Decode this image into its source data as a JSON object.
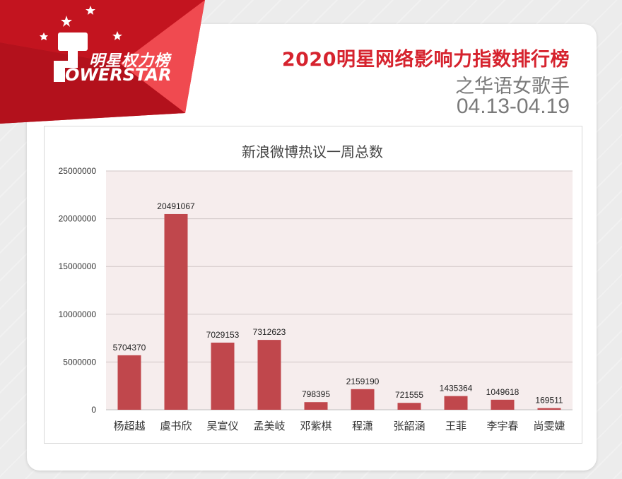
{
  "header": {
    "logo_cn": "明星权力榜",
    "logo_en": "OWERSTAR",
    "title": "2020明星网络影响力指数排行榜",
    "subtitle": "之华语女歌手",
    "date_range": "04.13-04.19"
  },
  "colors": {
    "accent": "#d6232e",
    "bar": "#c0474c",
    "plot_bg": "#f6eded",
    "banner_dark": "#b3111c",
    "banner_light": "#e02b33"
  },
  "chart_data": {
    "type": "bar",
    "title": "新浪微博热议一周总数",
    "categories": [
      "杨超越",
      "虞书欣",
      "吴宣仪",
      "孟美岐",
      "邓紫棋",
      "程潇",
      "张韶涵",
      "王菲",
      "李宇春",
      "尚雯婕"
    ],
    "values": [
      5704370,
      20491067,
      7029153,
      7312623,
      798395,
      2159190,
      721555,
      1435364,
      1049618,
      169511
    ],
    "ylim": [
      0,
      25000000
    ],
    "yticks": [
      0,
      5000000,
      10000000,
      15000000,
      20000000,
      25000000
    ],
    "grid": true,
    "legend": "none"
  }
}
